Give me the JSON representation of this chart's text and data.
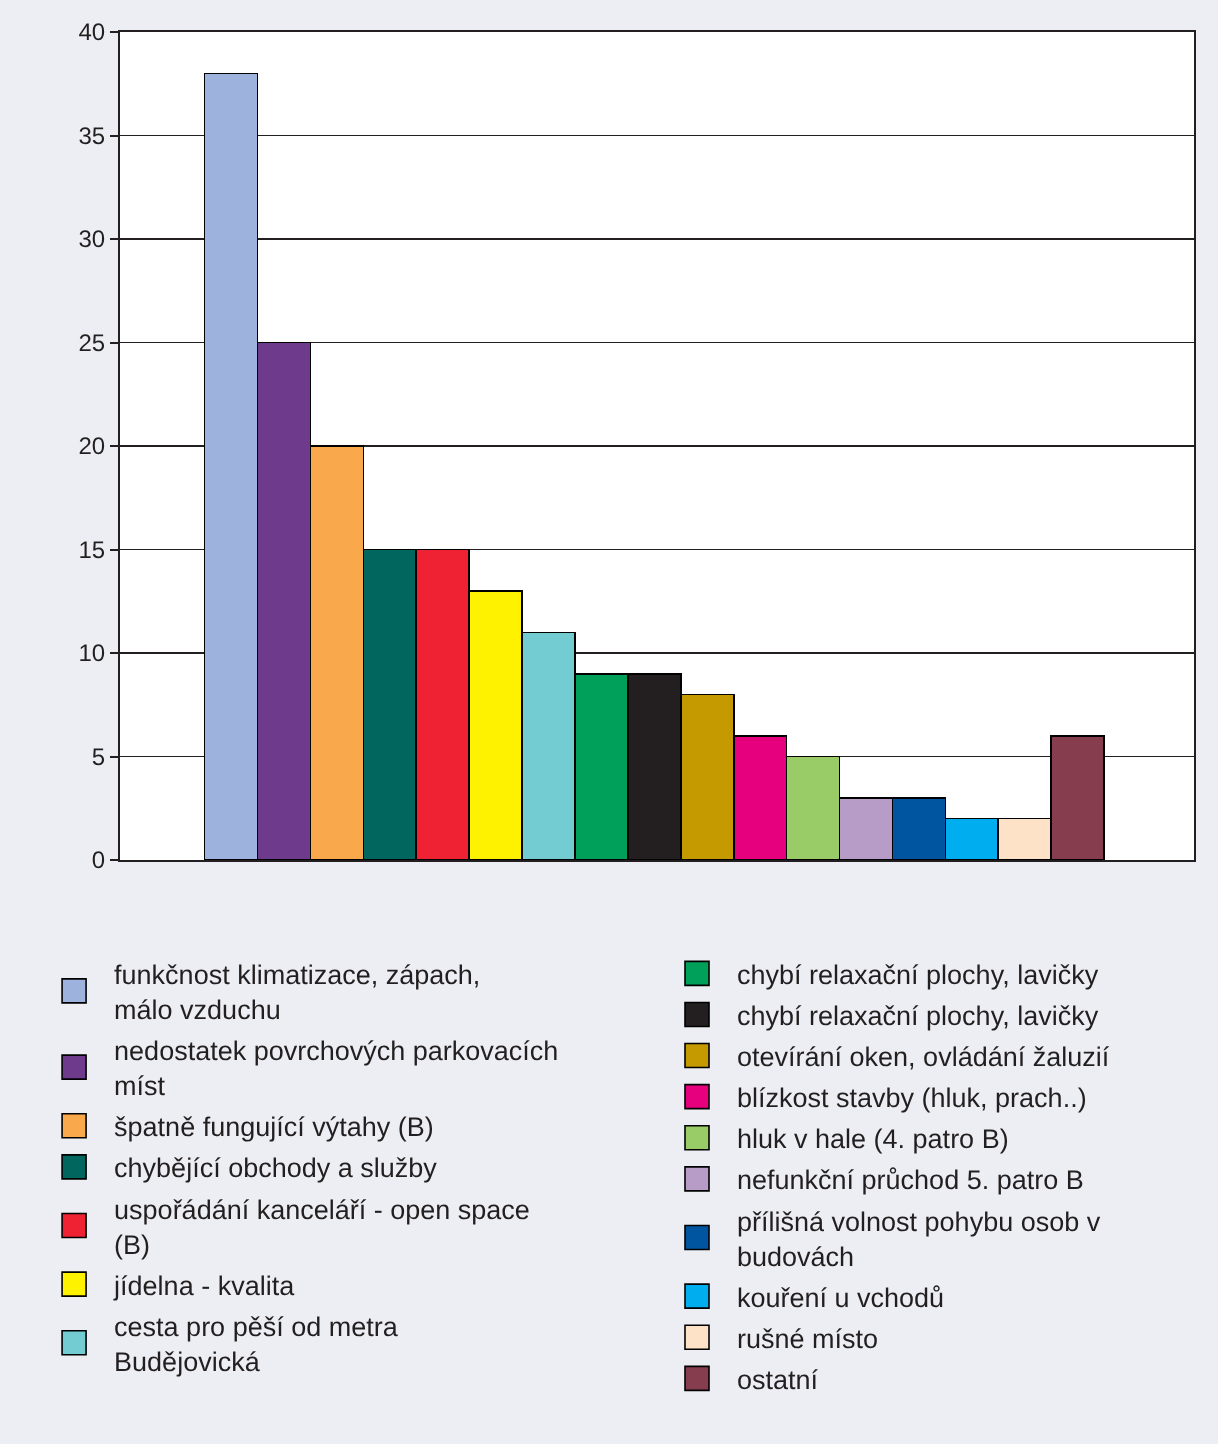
{
  "chart_data": {
    "type": "bar",
    "stacked": true,
    "categories": [
      null,
      null,
      null,
      null,
      null,
      null,
      null,
      null,
      null,
      null,
      null,
      null,
      null,
      null,
      null,
      null,
      null
    ],
    "series": [
      {
        "name": "funkčnost klimatizace, zápach, málo vzduchu",
        "color": "#9db3dd",
        "values": [
          38,
          null,
          null,
          null,
          null,
          null,
          null,
          null,
          null,
          null,
          null,
          null,
          null,
          null,
          null,
          null,
          null
        ]
      },
      {
        "name": "nedostatek povrchových parkovacích míst",
        "color": "#6e3a8c",
        "values": [
          null,
          25,
          null,
          null,
          null,
          null,
          null,
          null,
          null,
          null,
          null,
          null,
          null,
          null,
          null,
          null,
          null
        ]
      },
      {
        "name": "špatně fungující výtahy (B)",
        "color": "#f9a94b",
        "values": [
          null,
          null,
          20,
          null,
          null,
          null,
          null,
          null,
          null,
          null,
          null,
          null,
          null,
          null,
          null,
          null,
          null
        ]
      },
      {
        "name": "chybějící obchody a služby",
        "color": "#00665e",
        "values": [
          null,
          null,
          null,
          15,
          null,
          null,
          null,
          null,
          null,
          null,
          null,
          null,
          null,
          null,
          null,
          null,
          null
        ]
      },
      {
        "name": "uspořádání kanceláří - open space (B)",
        "color": "#ee2232",
        "values": [
          null,
          null,
          null,
          null,
          15,
          null,
          null,
          null,
          null,
          null,
          null,
          null,
          null,
          null,
          null,
          null,
          null
        ]
      },
      {
        "name": "jídelna - kvalita",
        "color": "#fff200",
        "values": [
          null,
          null,
          null,
          null,
          null,
          13,
          null,
          null,
          null,
          null,
          null,
          null,
          null,
          null,
          null,
          null,
          null
        ]
      },
      {
        "name": "cesta pro pěší od metra Budějovická",
        "color": "#74ccd3",
        "values": [
          null,
          null,
          null,
          null,
          null,
          null,
          11,
          null,
          null,
          null,
          null,
          null,
          null,
          null,
          null,
          null,
          null
        ]
      },
      {
        "name": "chybí relaxační plochy, lavičky",
        "color": "#00a05a",
        "values": [
          null,
          null,
          null,
          null,
          null,
          null,
          null,
          9,
          null,
          null,
          null,
          null,
          null,
          null,
          null,
          null,
          null
        ]
      },
      {
        "name": "chybí relaxační plochy, lavičky",
        "color": "#231f20",
        "values": [
          null,
          null,
          null,
          null,
          null,
          null,
          null,
          null,
          9,
          null,
          null,
          null,
          null,
          null,
          null,
          null,
          null
        ]
      },
      {
        "name": "otevírání oken, ovládání žaluzií",
        "color": "#c49a00",
        "values": [
          null,
          null,
          null,
          null,
          null,
          null,
          null,
          null,
          null,
          8,
          null,
          null,
          null,
          null,
          null,
          null,
          null
        ]
      },
      {
        "name": "blízkost stavby (hluk, prach..)",
        "color": "#e6007e",
        "values": [
          null,
          null,
          null,
          null,
          null,
          null,
          null,
          null,
          null,
          null,
          6,
          null,
          null,
          null,
          null,
          null,
          null
        ]
      },
      {
        "name": "hluk v hale (4. patro B)",
        "color": "#99cc66",
        "values": [
          null,
          null,
          null,
          null,
          null,
          null,
          null,
          null,
          null,
          null,
          null,
          5,
          null,
          null,
          null,
          null,
          null
        ]
      },
      {
        "name": "nefunkční průchod 5. patro B",
        "color": "#b89cc8",
        "values": [
          null,
          null,
          null,
          null,
          null,
          null,
          null,
          null,
          null,
          null,
          null,
          null,
          3,
          null,
          null,
          null,
          null
        ]
      },
      {
        "name": "přílišná volnost pohybu osob v budovách",
        "color": "#0055a0",
        "values": [
          null,
          null,
          null,
          null,
          null,
          null,
          null,
          null,
          null,
          null,
          null,
          null,
          null,
          3,
          null,
          null,
          null
        ]
      },
      {
        "name": "kouření u vchodů",
        "color": "#00aeef",
        "values": [
          null,
          null,
          null,
          null,
          null,
          null,
          null,
          null,
          null,
          null,
          null,
          null,
          null,
          null,
          2,
          null,
          null
        ]
      },
      {
        "name": "rušné místo",
        "color": "#fde2c8",
        "values": [
          null,
          null,
          null,
          null,
          null,
          null,
          null,
          null,
          null,
          null,
          null,
          null,
          null,
          null,
          null,
          2,
          null
        ]
      },
      {
        "name": "ostatní",
        "color": "#863e4e",
        "values": [
          null,
          null,
          null,
          null,
          null,
          null,
          null,
          null,
          null,
          null,
          null,
          null,
          null,
          null,
          null,
          null,
          6
        ]
      }
    ],
    "ylim": [
      0,
      40
    ],
    "yticks": [
      0,
      5,
      10,
      15,
      20,
      25,
      30,
      35,
      40
    ],
    "grid": "y",
    "legend": "bottom",
    "tick_labels": "y"
  }
}
